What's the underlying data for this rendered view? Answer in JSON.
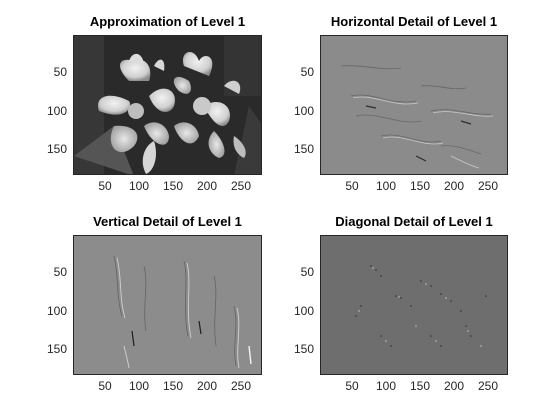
{
  "figure": {
    "panels": [
      {
        "id": "approx",
        "title": "Approximation of Level 1",
        "image_kind": "approximation",
        "xticks": [
          "50",
          "100",
          "150",
          "200",
          "250"
        ],
        "yticks": [
          "50",
          "100",
          "150"
        ]
      },
      {
        "id": "horizontal",
        "title": "Horizontal Detail of Level 1",
        "image_kind": "detail",
        "xticks": [
          "50",
          "100",
          "150",
          "200",
          "250"
        ],
        "yticks": [
          "50",
          "100",
          "150"
        ]
      },
      {
        "id": "vertical",
        "title": "Vertical Detail of Level 1",
        "image_kind": "detail",
        "xticks": [
          "50",
          "100",
          "150",
          "200",
          "250"
        ],
        "yticks": [
          "50",
          "100",
          "150"
        ]
      },
      {
        "id": "diagonal",
        "title": "Diagonal Detail of Level 1",
        "image_kind": "detail-dark",
        "xticks": [
          "50",
          "100",
          "150",
          "200",
          "250"
        ],
        "yticks": [
          "50",
          "100",
          "150"
        ]
      }
    ]
  }
}
